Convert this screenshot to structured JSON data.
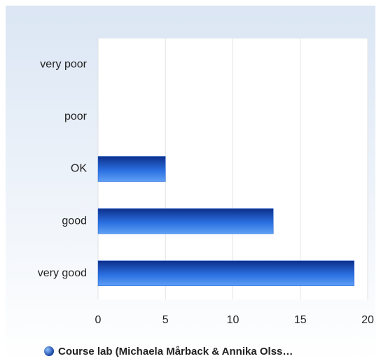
{
  "chart_data": {
    "type": "bar",
    "orientation": "horizontal",
    "categories": [
      "very poor",
      "poor",
      "OK",
      "good",
      "very good"
    ],
    "series": [
      {
        "name": "Course lab (Michaela Mårback & Annika Olss…",
        "color": "#1f5fd6",
        "values": [
          0,
          0,
          5,
          13,
          19
        ]
      }
    ],
    "xlim": [
      0,
      20
    ],
    "xticks": [
      0,
      5,
      10,
      15,
      20
    ],
    "grid": true
  }
}
